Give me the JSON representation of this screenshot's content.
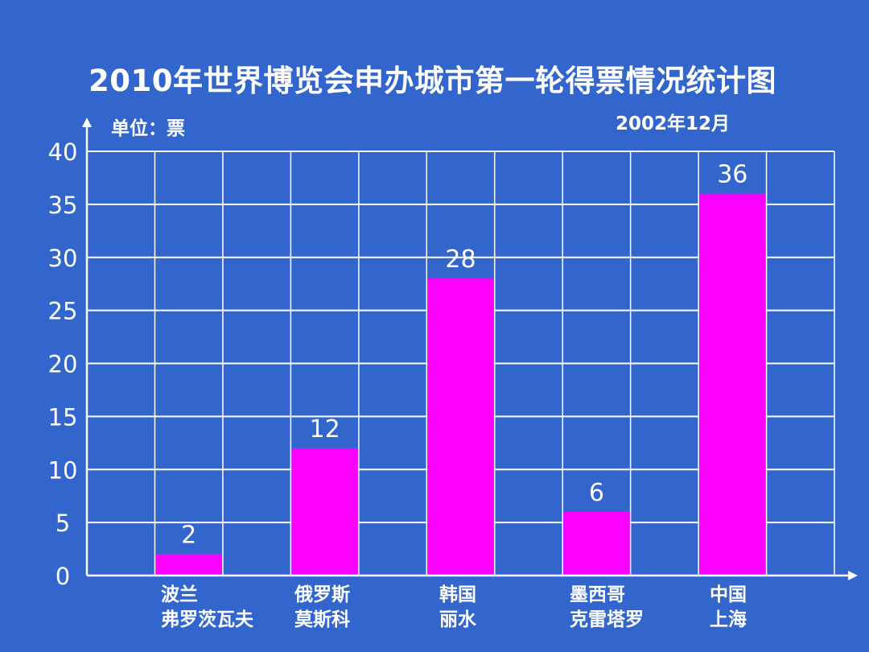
{
  "title": "2010年世界博览会申办城市第一轮得票情况统计图",
  "unit_label": "单位：票",
  "date_label": "2002年12月",
  "colors": {
    "background": "#3366CC",
    "bar": "#FF00FF",
    "grid": "#FFFFFF",
    "text": "#FFFFFF"
  },
  "chart_data": {
    "type": "bar",
    "title": "2010年世界博览会申办城市第一轮得票情况统计图",
    "ylabel": "单位：票",
    "xlabel": "",
    "ylim": [
      0,
      40
    ],
    "yticks": [
      0,
      5,
      10,
      15,
      20,
      25,
      30,
      35,
      40
    ],
    "grid": true,
    "categories": [
      [
        "波兰",
        "弗罗茨瓦夫"
      ],
      [
        "俄罗斯",
        "莫斯科"
      ],
      [
        "韩国",
        "丽水"
      ],
      [
        "墨西哥",
        "克雷塔罗"
      ],
      [
        "中国",
        "上海"
      ]
    ],
    "values": [
      2,
      12,
      28,
      6,
      36
    ],
    "data_labels": [
      "2",
      "12",
      "28",
      "6",
      "36"
    ]
  }
}
